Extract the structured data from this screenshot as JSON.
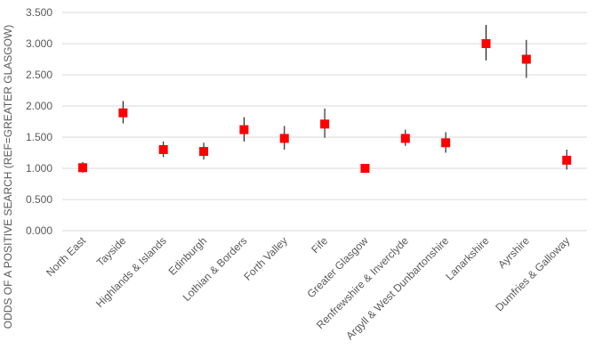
{
  "chart_data": {
    "type": "scatter",
    "title": "",
    "xlabel": "",
    "ylabel": "ODDS OF A POSITIVE SEARCH (REF=GREATER GLASGOW)",
    "ylim": [
      0,
      3.5
    ],
    "yticks": [
      "0.000",
      "0.500",
      "1.000",
      "1.500",
      "2.000",
      "2.500",
      "3.000",
      "3.500"
    ],
    "grid": true,
    "legend": "none",
    "marker_color": "#ff0000",
    "error_bar_color": "#000000",
    "grid_color": "#d9d9d9",
    "categories": [
      "North East",
      "Tayside",
      "Highlands & Islands",
      "Edinburgh",
      "Lothian & Borders",
      "Forth Valley",
      "Fife",
      "Greater Glasgow",
      "Renfrewshire & Inverclyde",
      "Argyll & West Dunbartonshire",
      "Lanarkshire",
      "Ayrshire",
      "Dumfries & Galloway"
    ],
    "series": [
      {
        "values": [
          1.01,
          1.89,
          1.3,
          1.27,
          1.62,
          1.48,
          1.71,
          1.0,
          1.48,
          1.41,
          3.0,
          2.75,
          1.13
        ],
        "lower": [
          0.93,
          1.72,
          1.18,
          1.14,
          1.43,
          1.3,
          1.49,
          1.0,
          1.36,
          1.25,
          2.73,
          2.45,
          0.98
        ],
        "upper": [
          1.1,
          2.08,
          1.43,
          1.41,
          1.82,
          1.68,
          1.96,
          1.0,
          1.62,
          1.58,
          3.3,
          3.06,
          1.3
        ]
      }
    ]
  }
}
